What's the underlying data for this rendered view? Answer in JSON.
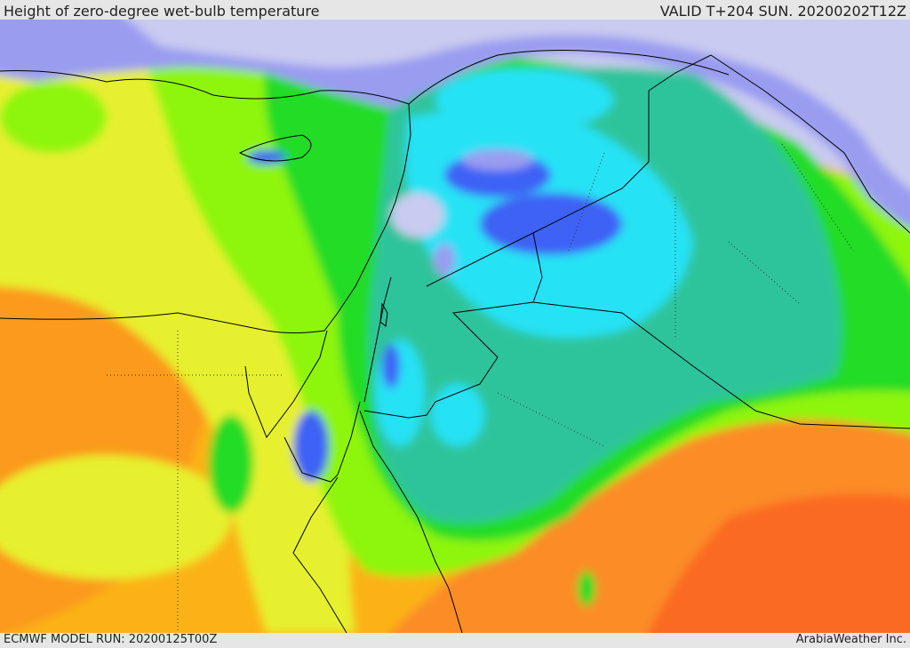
{
  "header": {
    "title": "Height of zero-degree wet-bulb temperature",
    "valid": "VALID T+204 SUN. 20200202T12Z"
  },
  "footer": {
    "model_run": "ECMWF MODEL RUN: 20200125T00Z",
    "credit": "ArabiaWeather Inc."
  },
  "palette": {
    "sea_light": "#c9cbf0",
    "lavender": "#9a9cf0",
    "blue": "#3e62f5",
    "cyan": "#28e2f5",
    "teal": "#2fc49b",
    "green": "#20dc28",
    "lime": "#8ef50f",
    "yellow": "#e6f02e",
    "orange_light": "#fbb214",
    "orange": "#fb8c28",
    "red_orange": "#fa5a1c"
  }
}
